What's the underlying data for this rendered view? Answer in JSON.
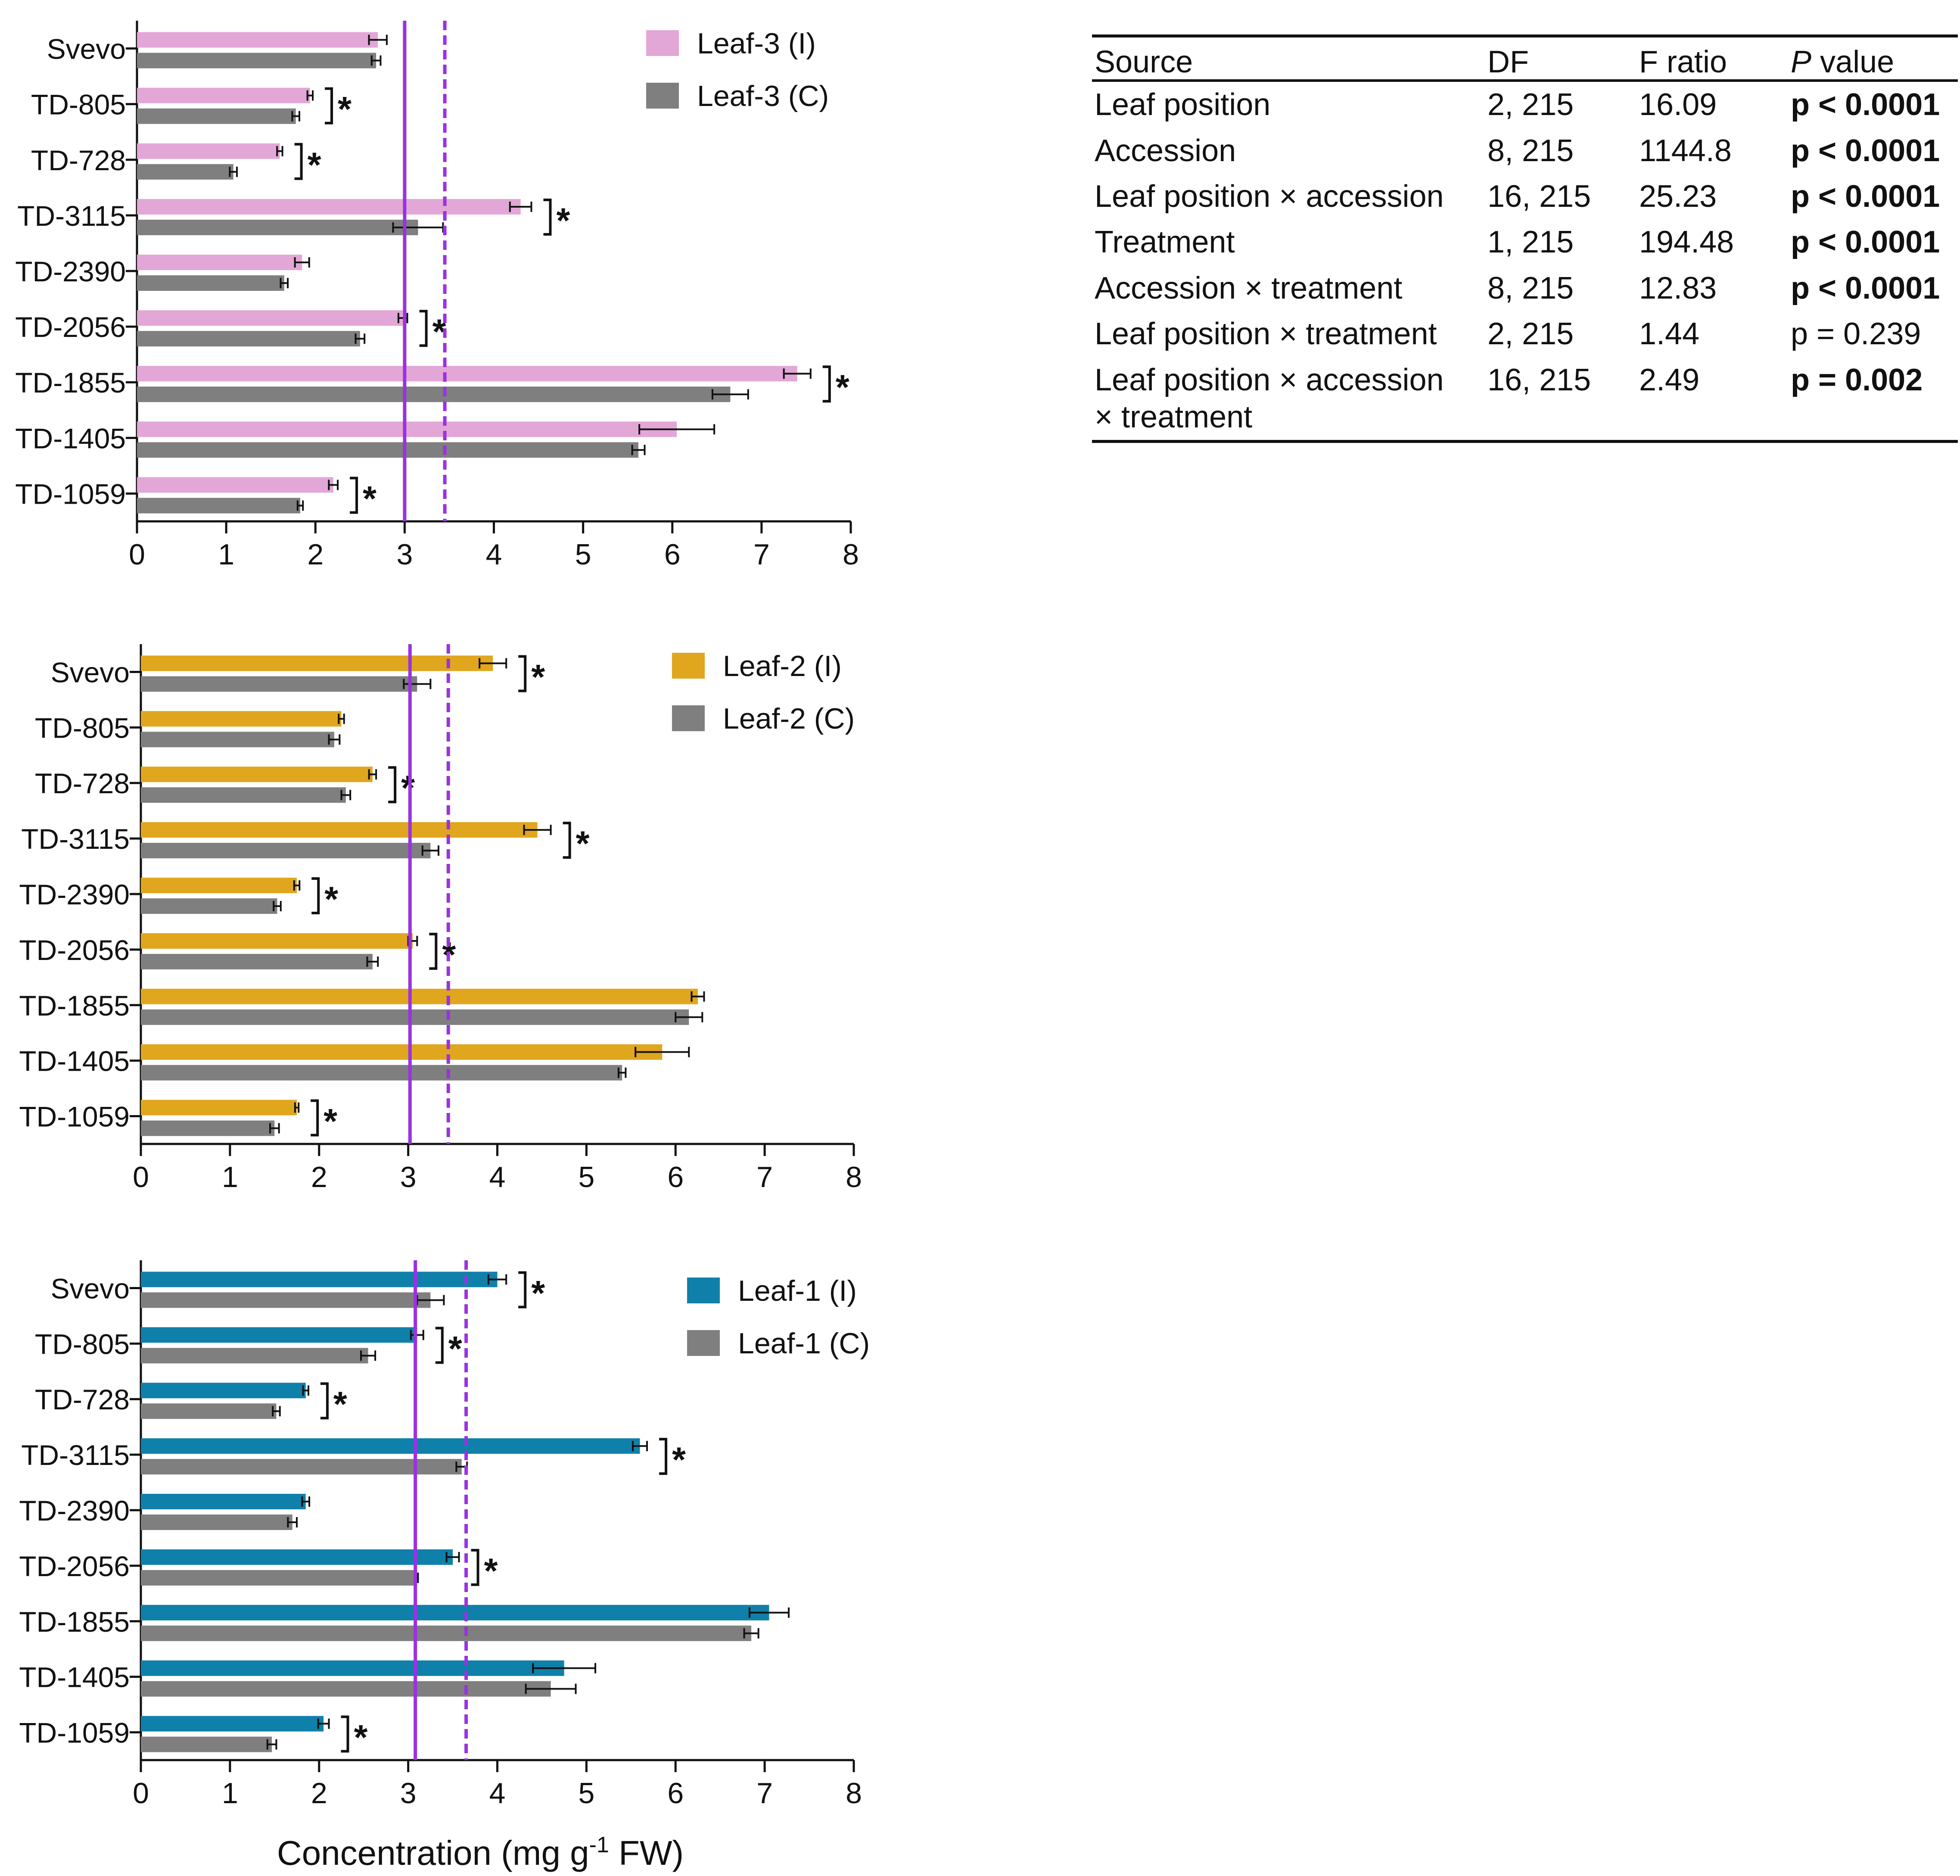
{
  "stats_table": {
    "headers": {
      "source": "Source",
      "df": "DF",
      "f_ratio": "F ratio",
      "p_italic": "P",
      "p_rest": " value"
    },
    "rows": [
      {
        "source": "Leaf position",
        "df": "2, 215",
        "f": "16.09",
        "p": "p < 0.0001",
        "bold": true
      },
      {
        "source": "Accession",
        "df": "8, 215",
        "f": "1144.8",
        "p": "p < 0.0001",
        "bold": true
      },
      {
        "source": "Leaf position × accession",
        "df": "16, 215",
        "f": "25.23",
        "p": "p < 0.0001",
        "bold": true
      },
      {
        "source": "Treatment",
        "df": "1, 215",
        "f": "194.48",
        "p": "p < 0.0001",
        "bold": true
      },
      {
        "source": "Accession × treatment",
        "df": "8, 215",
        "f": "12.83",
        "p": "p < 0.0001",
        "bold": true
      },
      {
        "source": "Leaf position × treatment",
        "df": "2, 215",
        "f": "1.44",
        "p": "p = 0.239",
        "bold": false
      },
      {
        "source": "Leaf position × accession",
        "source2": "×  treatment",
        "df": "16, 215",
        "f": "2.49",
        "p": "p = 0.002",
        "bold": true
      }
    ]
  },
  "x_axis_label": {
    "main": "Concentration (mg g",
    "sup": "-1",
    "tail": " FW)"
  },
  "significance_marker": "*",
  "chart_data": [
    {
      "type": "bar",
      "orientation": "horizontal",
      "categories": [
        "Svevo",
        "TD-805",
        "TD-728",
        "TD-3115",
        "TD-2390",
        "TD-2056",
        "TD-1855",
        "TD-1405",
        "TD-1059"
      ],
      "xlim": [
        0,
        8
      ],
      "xticks": [
        "0",
        "1",
        "2",
        "3",
        "4",
        "5",
        "6",
        "7",
        "8"
      ],
      "series": [
        {
          "name": "Leaf-3 (I)",
          "color": "#e2a7d6",
          "values": [
            2.7,
            1.94,
            1.6,
            4.3,
            1.85,
            2.98,
            7.4,
            6.05,
            2.2
          ],
          "errors": [
            0.1,
            0.03,
            0.03,
            0.12,
            0.08,
            0.05,
            0.15,
            0.42,
            0.05
          ]
        },
        {
          "name": "Leaf-3 (C)",
          "color": "#7f7f7f",
          "values": [
            2.68,
            1.78,
            1.08,
            3.15,
            1.65,
            2.5,
            6.65,
            5.62,
            1.83
          ],
          "errors": [
            0.05,
            0.04,
            0.04,
            0.28,
            0.04,
            0.05,
            0.2,
            0.07,
            0.03
          ]
        }
      ],
      "significant": [
        false,
        true,
        true,
        true,
        false,
        true,
        true,
        false,
        true
      ],
      "reference_lines": [
        {
          "value": 3.0,
          "style": "solid",
          "color": "#9a32e0"
        },
        {
          "value": 3.45,
          "style": "dashed",
          "color": "#9a32e0"
        }
      ],
      "legend_position": "top-right"
    },
    {
      "type": "bar",
      "orientation": "horizontal",
      "categories": [
        "Svevo",
        "TD-805",
        "TD-728",
        "TD-3115",
        "TD-2390",
        "TD-2056",
        "TD-1855",
        "TD-1405",
        "TD-1059"
      ],
      "xlim": [
        0,
        8
      ],
      "xticks": [
        "0",
        "1",
        "2",
        "3",
        "4",
        "5",
        "6",
        "7",
        "8"
      ],
      "series": [
        {
          "name": "Leaf-2 (I)",
          "color": "#e0a61d",
          "values": [
            3.95,
            2.25,
            2.6,
            4.45,
            1.75,
            3.05,
            6.25,
            5.85,
            1.75
          ],
          "errors": [
            0.15,
            0.03,
            0.04,
            0.15,
            0.03,
            0.05,
            0.07,
            0.3,
            0.02
          ]
        },
        {
          "name": "Leaf-2 (C)",
          "color": "#7f7f7f",
          "values": [
            3.1,
            2.17,
            2.3,
            3.25,
            1.53,
            2.6,
            6.15,
            5.4,
            1.5
          ],
          "errors": [
            0.15,
            0.06,
            0.05,
            0.09,
            0.04,
            0.06,
            0.15,
            0.04,
            0.05
          ]
        }
      ],
      "significant": [
        true,
        false,
        true,
        true,
        true,
        true,
        false,
        false,
        true
      ],
      "reference_lines": [
        {
          "value": 3.02,
          "style": "solid",
          "color": "#9a32e0"
        },
        {
          "value": 3.45,
          "style": "dashed",
          "color": "#9a32e0"
        }
      ],
      "legend_position": "top-right"
    },
    {
      "type": "bar",
      "orientation": "horizontal",
      "categories": [
        "Svevo",
        "TD-805",
        "TD-728",
        "TD-3115",
        "TD-2390",
        "TD-2056",
        "TD-1855",
        "TD-1405",
        "TD-1059"
      ],
      "xlim": [
        0,
        8
      ],
      "xticks": [
        "0",
        "1",
        "2",
        "3",
        "4",
        "5",
        "6",
        "7",
        "8"
      ],
      "series": [
        {
          "name": "Leaf-1 (I)",
          "color": "#0f80aa",
          "values": [
            4.0,
            3.1,
            1.85,
            5.6,
            1.85,
            3.5,
            7.05,
            4.75,
            2.05
          ],
          "errors": [
            0.1,
            0.07,
            0.03,
            0.08,
            0.04,
            0.07,
            0.22,
            0.35,
            0.06
          ]
        },
        {
          "name": "Leaf-1 (C)",
          "color": "#7f7f7f",
          "values": [
            3.25,
            2.55,
            1.52,
            3.6,
            1.7,
            3.1,
            6.85,
            4.6,
            1.47
          ],
          "errors": [
            0.15,
            0.08,
            0.04,
            0.06,
            0.05,
            0.01,
            0.08,
            0.28,
            0.05
          ]
        }
      ],
      "significant": [
        true,
        true,
        true,
        true,
        false,
        true,
        false,
        false,
        true
      ],
      "reference_lines": [
        {
          "value": 3.08,
          "style": "solid",
          "color": "#9a32e0"
        },
        {
          "value": 3.65,
          "style": "dashed",
          "color": "#9a32e0"
        }
      ],
      "legend_position": "top-right"
    }
  ]
}
